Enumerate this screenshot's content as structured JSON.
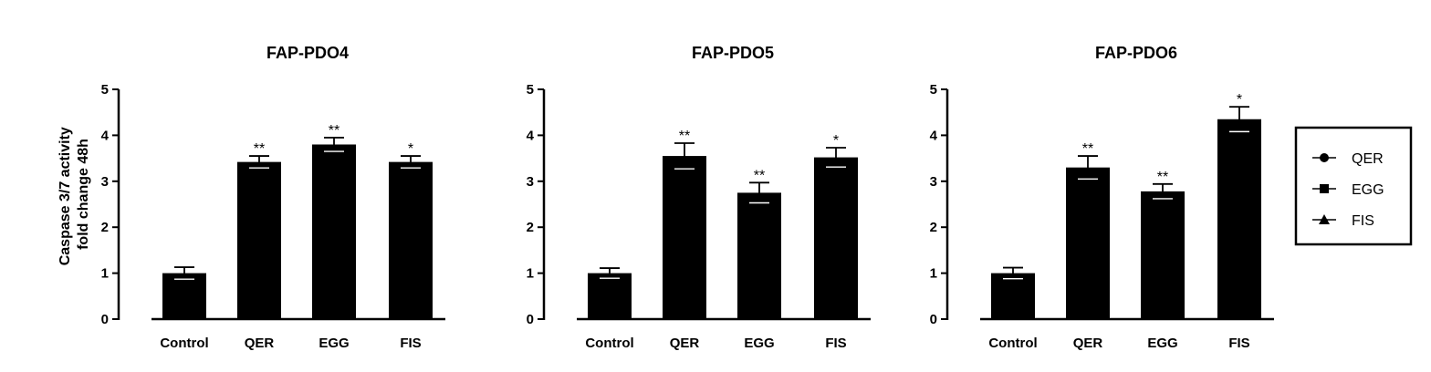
{
  "figure": {
    "y_axis_label_line1": "Caspase 3/7 activity",
    "y_axis_label_line2": "fold change 48h"
  },
  "legend": {
    "placement": "right",
    "items": [
      {
        "label": "QER",
        "marker": "circle"
      },
      {
        "label": "EGG",
        "marker": "square"
      },
      {
        "label": "FIS",
        "marker": "triangle"
      }
    ]
  },
  "chart_data": [
    {
      "type": "bar",
      "title": "FAP-PDO4",
      "ylabel": "Caspase 3/7 activity fold change 48h",
      "ylim": [
        0,
        5
      ],
      "yticks": [
        0,
        1,
        2,
        3,
        4,
        5
      ],
      "categories": [
        "Control",
        "QER",
        "EGG",
        "FIS"
      ],
      "values": [
        1.0,
        3.42,
        3.8,
        3.42
      ],
      "errors": [
        0.13,
        0.13,
        0.15,
        0.13
      ],
      "significance": [
        "",
        "**",
        "**",
        "*"
      ],
      "bar_color": "#000000"
    },
    {
      "type": "bar",
      "title": "FAP-PDO5",
      "ylim": [
        0,
        5
      ],
      "yticks": [
        0,
        1,
        2,
        3,
        4,
        5
      ],
      "categories": [
        "Control",
        "QER",
        "EGG",
        "FIS"
      ],
      "values": [
        1.0,
        3.55,
        2.75,
        3.52
      ],
      "errors": [
        0.11,
        0.28,
        0.22,
        0.21
      ],
      "significance": [
        "",
        "**",
        "**",
        "*"
      ],
      "bar_color": "#000000"
    },
    {
      "type": "bar",
      "title": "FAP-PDO6",
      "ylim": [
        0,
        5
      ],
      "yticks": [
        0,
        1,
        2,
        3,
        4,
        5
      ],
      "categories": [
        "Control",
        "QER",
        "EGG",
        "FIS"
      ],
      "values": [
        1.0,
        3.3,
        2.78,
        4.35
      ],
      "errors": [
        0.12,
        0.25,
        0.16,
        0.27
      ],
      "significance": [
        "",
        "**",
        "**",
        "*"
      ],
      "bar_color": "#000000"
    }
  ]
}
